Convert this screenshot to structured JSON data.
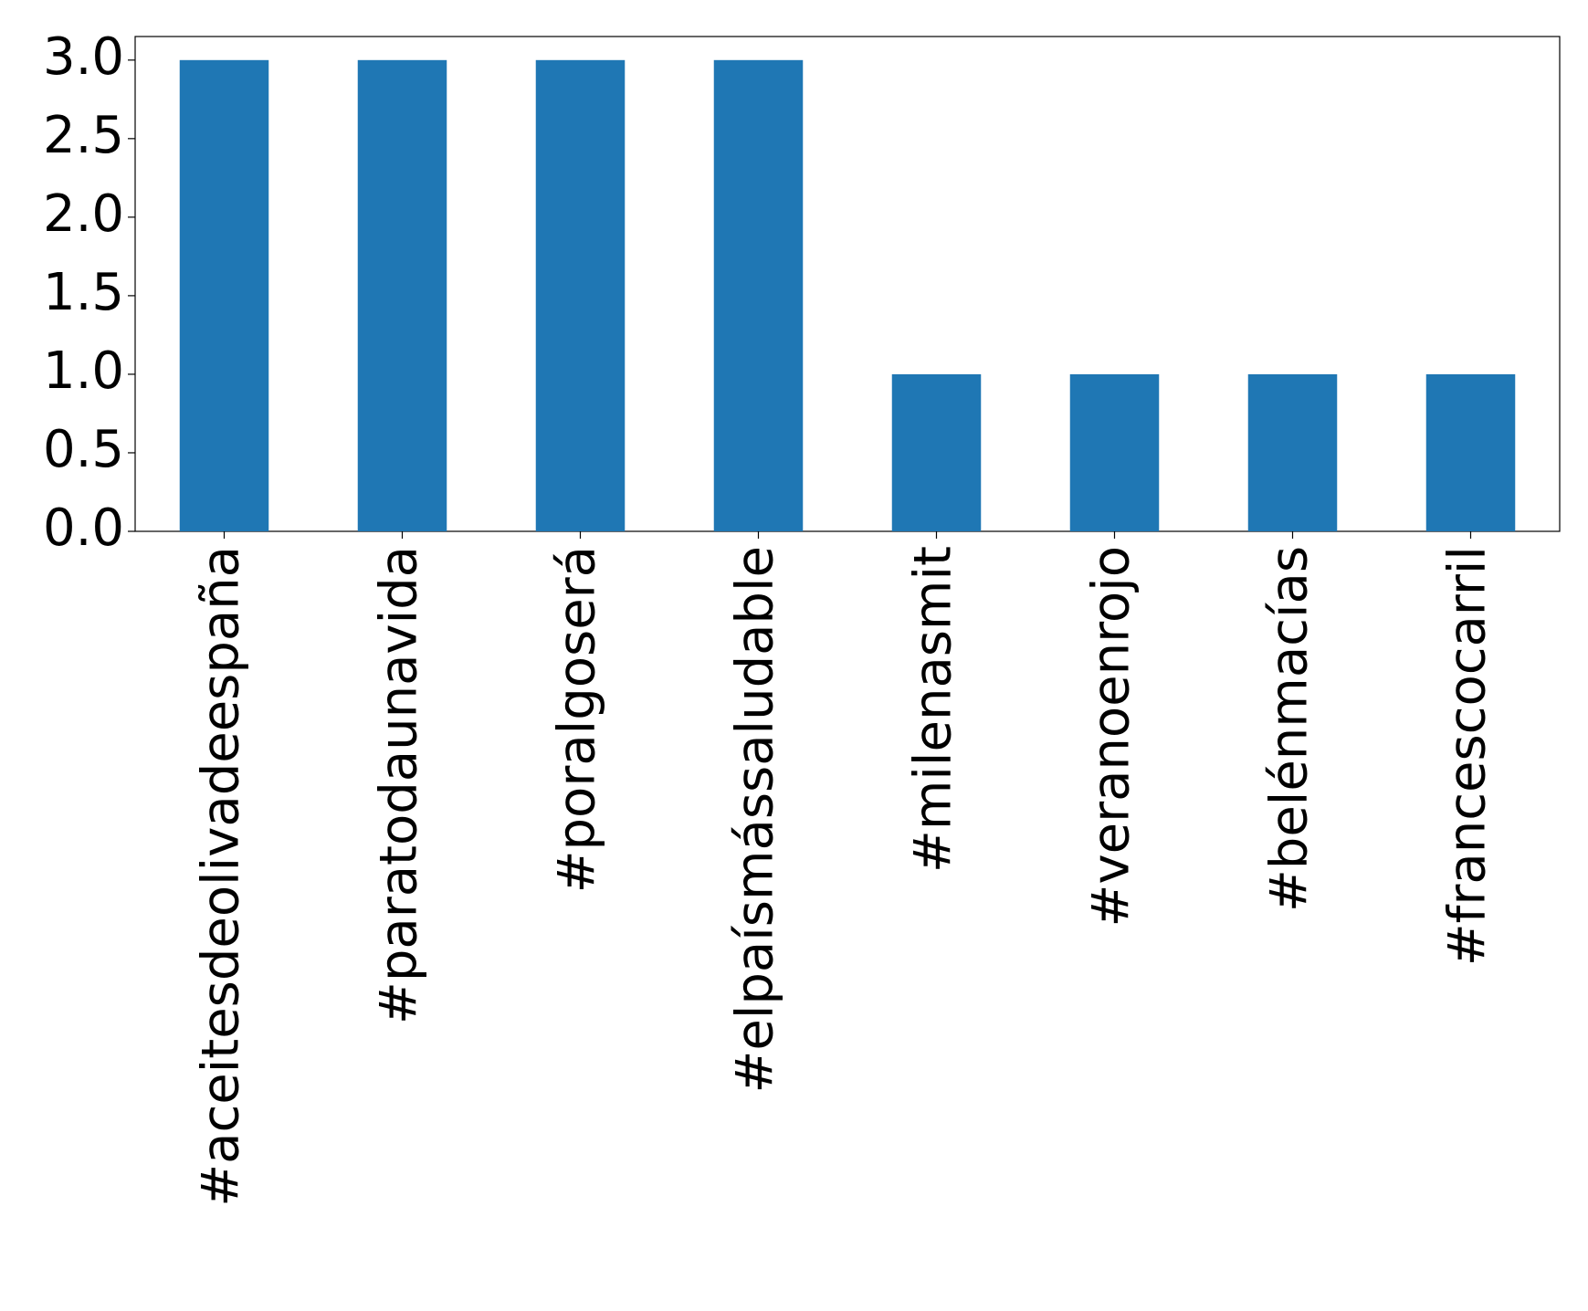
{
  "chart_data": {
    "type": "bar",
    "categories": [
      "#aceitesdeolivadeespaña",
      "#paratodaunavida",
      "#poralgoserá",
      "#elpaísmássaludable",
      "#milenasmit",
      "#veranoenrojo",
      "#belénmacías",
      "#francescocarril"
    ],
    "values": [
      3,
      3,
      3,
      3,
      1,
      1,
      1,
      1
    ],
    "color": "#1f77b4",
    "ylim": [
      0,
      3.15
    ],
    "yticks": [
      {
        "value": 0,
        "label": "0.0"
      },
      {
        "value": 0.5,
        "label": "0.5"
      },
      {
        "value": 1,
        "label": "1.0"
      },
      {
        "value": 1.5,
        "label": "1.5"
      },
      {
        "value": 2,
        "label": "2.0"
      },
      {
        "value": 2.5,
        "label": "2.5"
      },
      {
        "value": 3,
        "label": "3.0"
      }
    ],
    "grid": false
  }
}
